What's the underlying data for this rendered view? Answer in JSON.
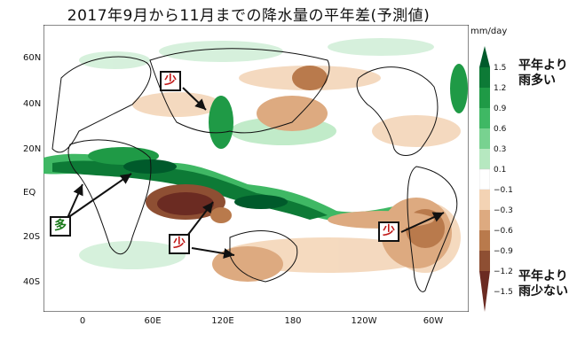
{
  "title": "2017年9月から11月までの降水量の平年差(予測値)",
  "units": "mm/day",
  "y_ticks": [
    "60N",
    "40N",
    "20N",
    "EQ",
    "20S",
    "40S"
  ],
  "x_ticks": [
    "0",
    "60E",
    "120E",
    "180",
    "120W",
    "60W"
  ],
  "colorbar": {
    "labels": [
      "1.5",
      "1.2",
      "0.9",
      "0.6",
      "0.3",
      "0.1",
      "−0.1",
      "−0.3",
      "−0.6",
      "−0.9",
      "−1.2",
      "−1.5"
    ],
    "colors": [
      "#005a2b",
      "#0d7a36",
      "#1f9a46",
      "#3fb864",
      "#78d290",
      "#b6e8c0",
      "#ffffff",
      "#f3d3b4",
      "#ddaa80",
      "#b97a4c",
      "#8e4f33",
      "#6b2b22"
    ]
  },
  "legend": {
    "wet_line1": "平年より",
    "wet_line2": "雨多い",
    "dry_line1": "平年より",
    "dry_line2": "雨少ない"
  },
  "callouts": {
    "less_north": "少",
    "more_africa": "多",
    "less_australia": "少",
    "less_south_america": "少"
  },
  "colors": {
    "wet": "#1a7a1a",
    "dry": "#c01818"
  }
}
